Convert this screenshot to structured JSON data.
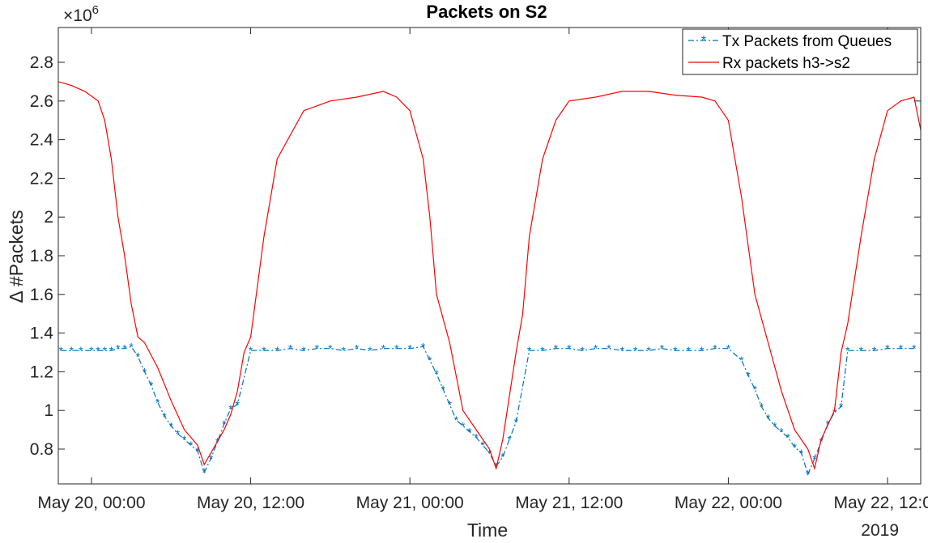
{
  "chart_data": {
    "type": "line",
    "title": "Packets on S2",
    "xlabel": "Time",
    "ylabel": "Δ #Packets",
    "y_exponent_label": "×10",
    "y_exponent_value": "6",
    "year_label": "2019",
    "x_unit": "hours since May 20, 00:00",
    "xlim": [
      -2.5,
      62.5
    ],
    "ylim": [
      0.62,
      2.98
    ],
    "y_ticks": [
      0.8,
      1,
      1.2,
      1.4,
      1.6,
      1.8,
      2,
      2.2,
      2.4,
      2.6,
      2.8
    ],
    "y_tick_labels": [
      "0.8",
      "1",
      "1.2",
      "1.4",
      "1.6",
      "1.8",
      "2",
      "2.2",
      "2.4",
      "2.6",
      "2.8"
    ],
    "x_ticks": [
      0,
      12,
      24,
      36,
      48,
      60
    ],
    "x_tick_labels": [
      "May 20, 00:00",
      "May 20, 12:00",
      "May 21, 00:00",
      "May 21, 12:00",
      "May 22, 00:00",
      "May 22, 12:00"
    ],
    "grid": false,
    "legend_position": "top-right",
    "series": [
      {
        "name": "Tx Packets from Queues",
        "color": "#0072BD",
        "style": "dash-dot with star markers",
        "x": [
          -2.3,
          -1.5,
          -0.8,
          0,
          0.5,
          1,
          1.5,
          2,
          2.5,
          3,
          3.5,
          4,
          4.5,
          5,
          5.5,
          6,
          6.5,
          7,
          7.5,
          8,
          8.5,
          9,
          9.5,
          10,
          10.5,
          11,
          12,
          13,
          14,
          15,
          16,
          17,
          18,
          19,
          20,
          21,
          22,
          23,
          24,
          25,
          25.5,
          26,
          26.5,
          27,
          27.5,
          28,
          28.5,
          29,
          29.5,
          30,
          30.5,
          31,
          31.5,
          32,
          33,
          34,
          35,
          36,
          37,
          38,
          39,
          40,
          41,
          42,
          43,
          44,
          45,
          46,
          47,
          48,
          49,
          49.5,
          50,
          50.5,
          51,
          51.5,
          52,
          52.5,
          53,
          53.5,
          54,
          54.5,
          55,
          55.5,
          56,
          56.5,
          57,
          58,
          59,
          60,
          61,
          62
        ],
        "y": [
          1.31,
          1.31,
          1.31,
          1.31,
          1.31,
          1.31,
          1.31,
          1.32,
          1.32,
          1.33,
          1.28,
          1.2,
          1.13,
          1.04,
          0.97,
          0.92,
          0.88,
          0.85,
          0.82,
          0.79,
          0.68,
          0.75,
          0.84,
          0.93,
          1.01,
          1.03,
          1.31,
          1.31,
          1.31,
          1.32,
          1.31,
          1.32,
          1.32,
          1.31,
          1.32,
          1.31,
          1.32,
          1.32,
          1.32,
          1.33,
          1.26,
          1.19,
          1.11,
          1.03,
          0.95,
          0.92,
          0.89,
          0.86,
          0.82,
          0.78,
          0.71,
          0.76,
          0.85,
          0.94,
          1.31,
          1.31,
          1.32,
          1.32,
          1.31,
          1.32,
          1.32,
          1.31,
          1.31,
          1.31,
          1.32,
          1.31,
          1.31,
          1.31,
          1.32,
          1.32,
          1.26,
          1.18,
          1.11,
          1.02,
          0.96,
          0.92,
          0.89,
          0.86,
          0.81,
          0.78,
          0.67,
          0.75,
          0.84,
          0.93,
          0.99,
          1.02,
          1.31,
          1.31,
          1.31,
          1.32,
          1.32,
          1.32
        ]
      },
      {
        "name": "Rx packets h3->s2",
        "color": "#FF0000",
        "style": "solid",
        "x": [
          -2.5,
          -1.5,
          -0.5,
          0.5,
          1,
          1.5,
          2,
          2.5,
          3,
          3.5,
          4,
          5,
          6,
          7,
          8,
          8.5,
          9,
          10,
          10.5,
          11,
          11.5,
          12,
          13,
          14,
          16,
          18,
          20,
          22,
          23,
          24,
          25,
          25.5,
          26,
          27,
          28,
          29,
          30,
          30.5,
          31,
          32,
          32.5,
          33,
          34,
          35,
          36,
          38,
          40,
          42,
          44,
          46,
          47,
          48,
          49,
          50,
          51,
          52,
          53,
          54,
          54.5,
          55,
          56,
          56.5,
          57,
          58,
          59,
          60,
          61,
          62,
          62.5
        ],
        "y": [
          2.7,
          2.68,
          2.65,
          2.6,
          2.5,
          2.3,
          2.0,
          1.8,
          1.55,
          1.38,
          1.35,
          1.22,
          1.05,
          0.9,
          0.82,
          0.72,
          0.78,
          0.9,
          0.98,
          1.1,
          1.3,
          1.38,
          1.9,
          2.3,
          2.55,
          2.6,
          2.62,
          2.65,
          2.62,
          2.55,
          2.3,
          2.0,
          1.6,
          1.35,
          1.0,
          0.9,
          0.8,
          0.7,
          0.85,
          1.3,
          1.5,
          1.9,
          2.3,
          2.5,
          2.6,
          2.62,
          2.65,
          2.65,
          2.63,
          2.62,
          2.6,
          2.5,
          2.1,
          1.6,
          1.35,
          1.1,
          0.9,
          0.8,
          0.7,
          0.85,
          1.0,
          1.3,
          1.45,
          1.9,
          2.3,
          2.55,
          2.6,
          2.62,
          2.45
        ]
      }
    ]
  }
}
